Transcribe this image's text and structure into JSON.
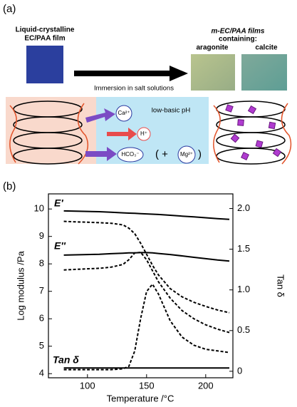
{
  "panel_a": {
    "label": "(a)",
    "film_left": [
      "Liquid-crystalline",
      "EC/PAA film"
    ],
    "film_right": [
      "m-EC/PAA films",
      "containing:"
    ],
    "aragonite": "aragonite",
    "calcite": "calcite",
    "arrow_text": "Immersion in salt solutions",
    "ions": {
      "ca": "Ca²⁺",
      "h": "H⁺",
      "hco3": "HCO₃⁻",
      "mg": "Mg²⁺",
      "open": "( +",
      "close": ")"
    },
    "ph": "low-basic pH"
  },
  "chart_data": {
    "type": "line",
    "label": "(b)",
    "xlabel": "Temperature /°C",
    "ylabel": "Log modulus /Pa",
    "y2label": "Tan δ",
    "annotations": [
      "E'",
      "E''",
      "Tan δ"
    ],
    "x": [
      80,
      90,
      100,
      110,
      120,
      130,
      135,
      140,
      145,
      150,
      155,
      160,
      170,
      180,
      190,
      200,
      210,
      220
    ],
    "series": [
      {
        "color": "#000000",
        "style": "solid",
        "values": [
          9.93,
          9.92,
          9.91,
          9.9,
          9.88,
          9.86,
          9.85,
          9.84,
          9.83,
          9.82,
          9.81,
          9.8,
          9.77,
          9.74,
          9.71,
          9.68,
          9.65,
          9.62
        ]
      },
      {
        "color": "#000000",
        "style": "solid",
        "values": [
          8.32,
          8.33,
          8.34,
          8.35,
          8.37,
          8.39,
          8.4,
          8.4,
          8.41,
          8.41,
          8.4,
          8.38,
          8.34,
          8.29,
          8.24,
          8.19,
          8.14,
          8.1
        ]
      },
      {
        "color": "#000000",
        "style": "dashed",
        "values": [
          9.55,
          9.53,
          9.52,
          9.5,
          9.48,
          9.42,
          9.3,
          9.1,
          8.75,
          8.35,
          7.95,
          7.6,
          7.1,
          6.8,
          6.6,
          6.45,
          6.32,
          6.22
        ]
      },
      {
        "color": "#000000",
        "style": "dashed",
        "values": [
          7.78,
          7.8,
          7.82,
          7.84,
          7.88,
          7.98,
          8.15,
          8.4,
          8.42,
          8.15,
          7.75,
          7.35,
          6.75,
          6.3,
          6.0,
          5.78,
          5.62,
          5.5
        ]
      },
      {
        "color": "#000000",
        "style": "solid",
        "axis": "y2",
        "values": [
          0.04,
          0.04,
          0.04,
          0.04,
          0.04,
          0.04,
          0.04,
          0.04,
          0.04,
          0.04,
          0.04,
          0.04,
          0.04,
          0.04,
          0.04,
          0.04,
          0.04,
          0.04
        ]
      },
      {
        "color": "#000000",
        "style": "dashed",
        "axis": "y2",
        "values": [
          0.02,
          0.02,
          0.02,
          0.02,
          0.02,
          0.03,
          0.06,
          0.25,
          0.65,
          0.98,
          1.07,
          0.95,
          0.62,
          0.42,
          0.32,
          0.27,
          0.25,
          0.23
        ]
      }
    ],
    "xlim": [
      67,
      223
    ],
    "xticks": [
      100,
      150,
      200
    ],
    "ylim": [
      3.85,
      10.55
    ],
    "yticks": [
      4,
      5,
      6,
      7,
      8,
      9,
      10
    ],
    "y2lim": [
      -0.08,
      2.18
    ],
    "y2ticks": [
      0,
      0.5,
      {
        "value": 1,
        "label": "1.0"
      },
      1.5,
      {
        "value": 2,
        "label": "2.0"
      }
    ],
    "grid": false
  }
}
